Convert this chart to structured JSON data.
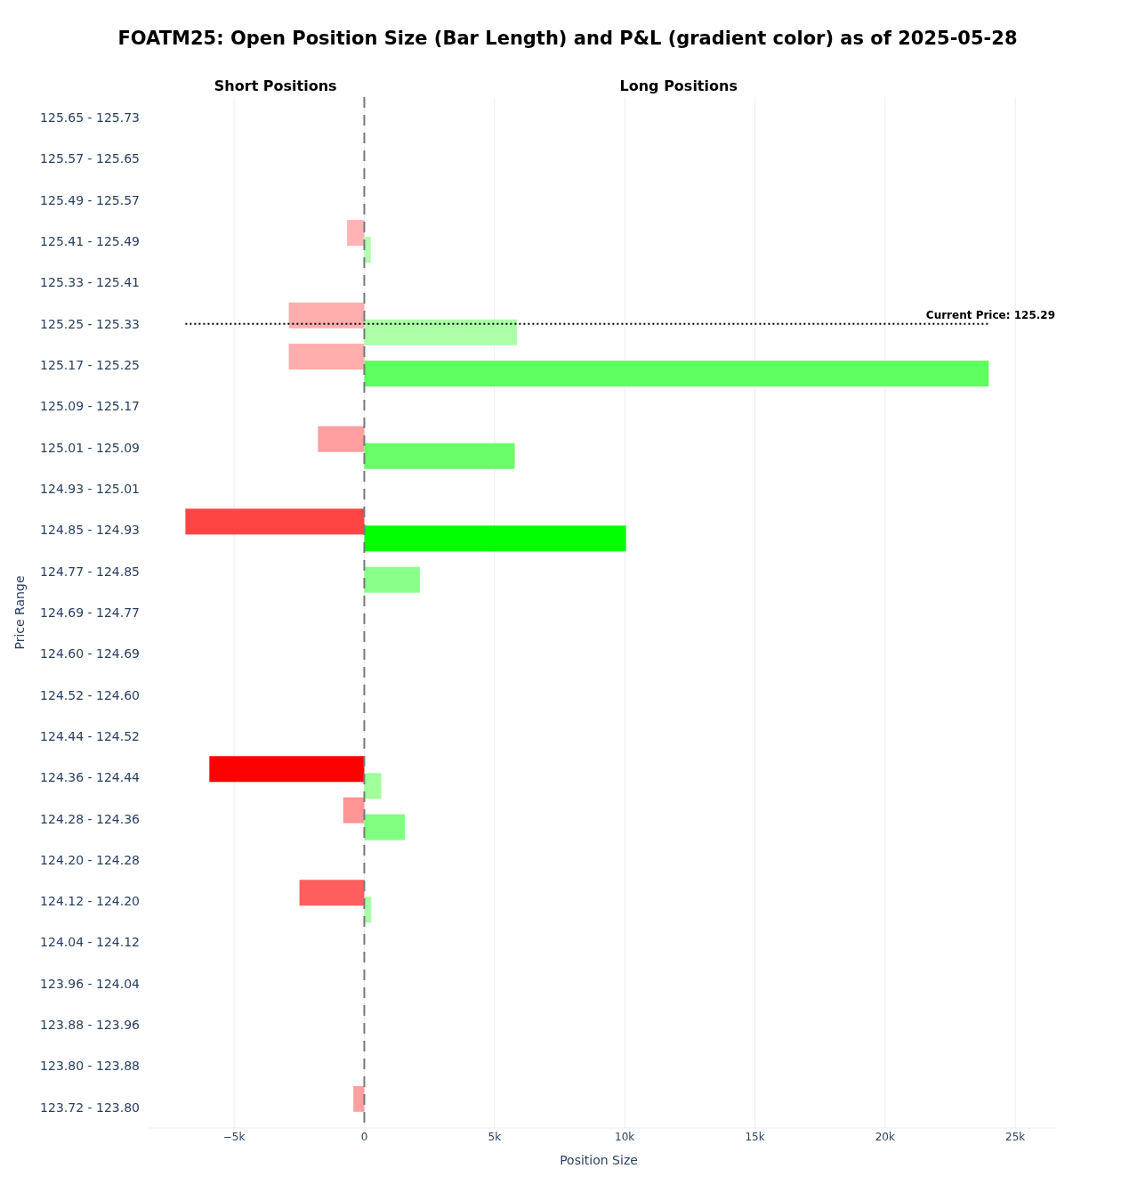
{
  "chart_data": {
    "type": "bar",
    "orientation": "horizontal",
    "title": "FOATM25: Open Position Size (Bar Length) and P&L (gradient color) as of 2025-05-28",
    "xlabel": "Position Size",
    "ylabel": "Price Range",
    "categories": [
      "125.65 - 125.73",
      "125.57 - 125.65",
      "125.49 - 125.57",
      "125.41 - 125.49",
      "125.33 - 125.41",
      "125.25 - 125.33",
      "125.17 - 125.25",
      "125.09 - 125.17",
      "125.01 - 125.09",
      "124.93 - 125.01",
      "124.85 - 124.93",
      "124.77 - 124.85",
      "124.69 - 124.77",
      "124.60 - 124.69",
      "124.52 - 124.60",
      "124.44 - 124.52",
      "124.36 - 124.44",
      "124.28 - 124.36",
      "124.20 - 124.28",
      "124.12 - 124.20",
      "124.04 - 124.12",
      "123.96 - 124.04",
      "123.88 - 123.96",
      "123.80 - 123.88",
      "123.72 - 123.80"
    ],
    "series": [
      {
        "values": [
          null,
          null,
          null,
          -660,
          null,
          -2900,
          -2900,
          null,
          -1780,
          null,
          -6870,
          null,
          null,
          null,
          null,
          null,
          -5950,
          -810,
          null,
          -2490,
          null,
          null,
          null,
          null,
          -420
        ],
        "colors": [
          null,
          null,
          null,
          "#ffb3b3",
          null,
          "#ffadad",
          "#ffadad",
          null,
          "#ff9f9f",
          null,
          "#ff4444",
          null,
          null,
          null,
          null,
          null,
          "#ff0000",
          "#ff9494",
          null,
          "#ff5e5e",
          null,
          null,
          null,
          null,
          "#ff9f9f"
        ]
      },
      {
        "values": [
          null,
          null,
          null,
          250,
          null,
          5870,
          23980,
          null,
          5780,
          null,
          10050,
          2130,
          null,
          null,
          null,
          null,
          650,
          1560,
          null,
          270,
          null,
          null,
          null,
          null,
          null
        ],
        "colors": [
          null,
          null,
          null,
          "#b0ffb0",
          null,
          "#adffa8",
          "#5fff5f",
          null,
          "#6aff6a",
          null,
          "#00ff00",
          "#8aff8a",
          null,
          null,
          null,
          null,
          "#a0ff9a",
          "#80ff80",
          null,
          "#a8ffa8",
          null,
          null,
          null,
          null,
          null
        ]
      }
    ],
    "xlim": [
      -8250,
      26600
    ],
    "xticks": [
      {
        "value": -5000,
        "label": "−5k"
      },
      0,
      {
        "value": 5000,
        "label": "5k"
      },
      {
        "value": 10000,
        "label": "10k"
      },
      {
        "value": 15000,
        "label": "15k"
      },
      {
        "value": 20000,
        "label": "20k"
      },
      {
        "value": 25000,
        "label": "25k"
      }
    ],
    "grid": "x",
    "ref_lines": [
      {
        "axis": "x",
        "value": 0,
        "color": "#777777",
        "line_style": "dashed"
      },
      {
        "axis": "y",
        "value": "125.25 - 125.33",
        "label": "Current Price: 125.29",
        "color": "#000000",
        "line_style": "dotted"
      }
    ],
    "annotations": [
      "Short Positions",
      "Long Positions"
    ]
  }
}
